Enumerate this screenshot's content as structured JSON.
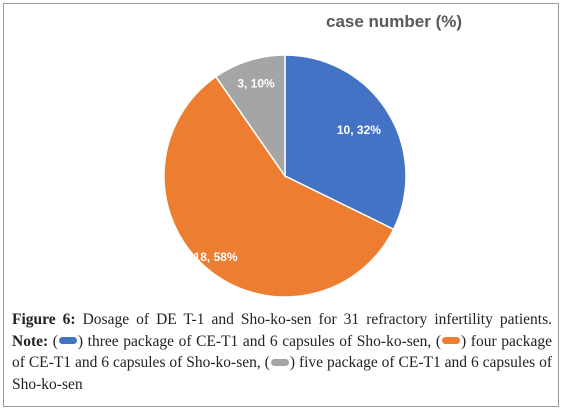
{
  "chart_data": {
    "type": "pie",
    "title": "case number (%)",
    "colors": [
      "#4472C4",
      "#ED7D31",
      "#A5A5A5"
    ],
    "slices": [
      {
        "value": 10,
        "label": "10, 32%"
      },
      {
        "value": 18,
        "label": "18, 58%"
      },
      {
        "value": 3,
        "label": "3, 10%"
      }
    ]
  },
  "caption": {
    "figure_label": "Figure 6:",
    "text_main": " Dosage of DE T-1 and Sho-ko-sen for 31 refractory infertility patients. ",
    "note_label": "Note:",
    "paren_open": " (",
    "item1": ") three package of CE-T1 and 6 capsules of Sho-ko-sen, (",
    "item2": ") four package of CE-T1 and 6 capsules of Sho-ko-sen, (",
    "item3": ") five package of CE-T1 and 6 capsules of Sho-ko-sen"
  }
}
